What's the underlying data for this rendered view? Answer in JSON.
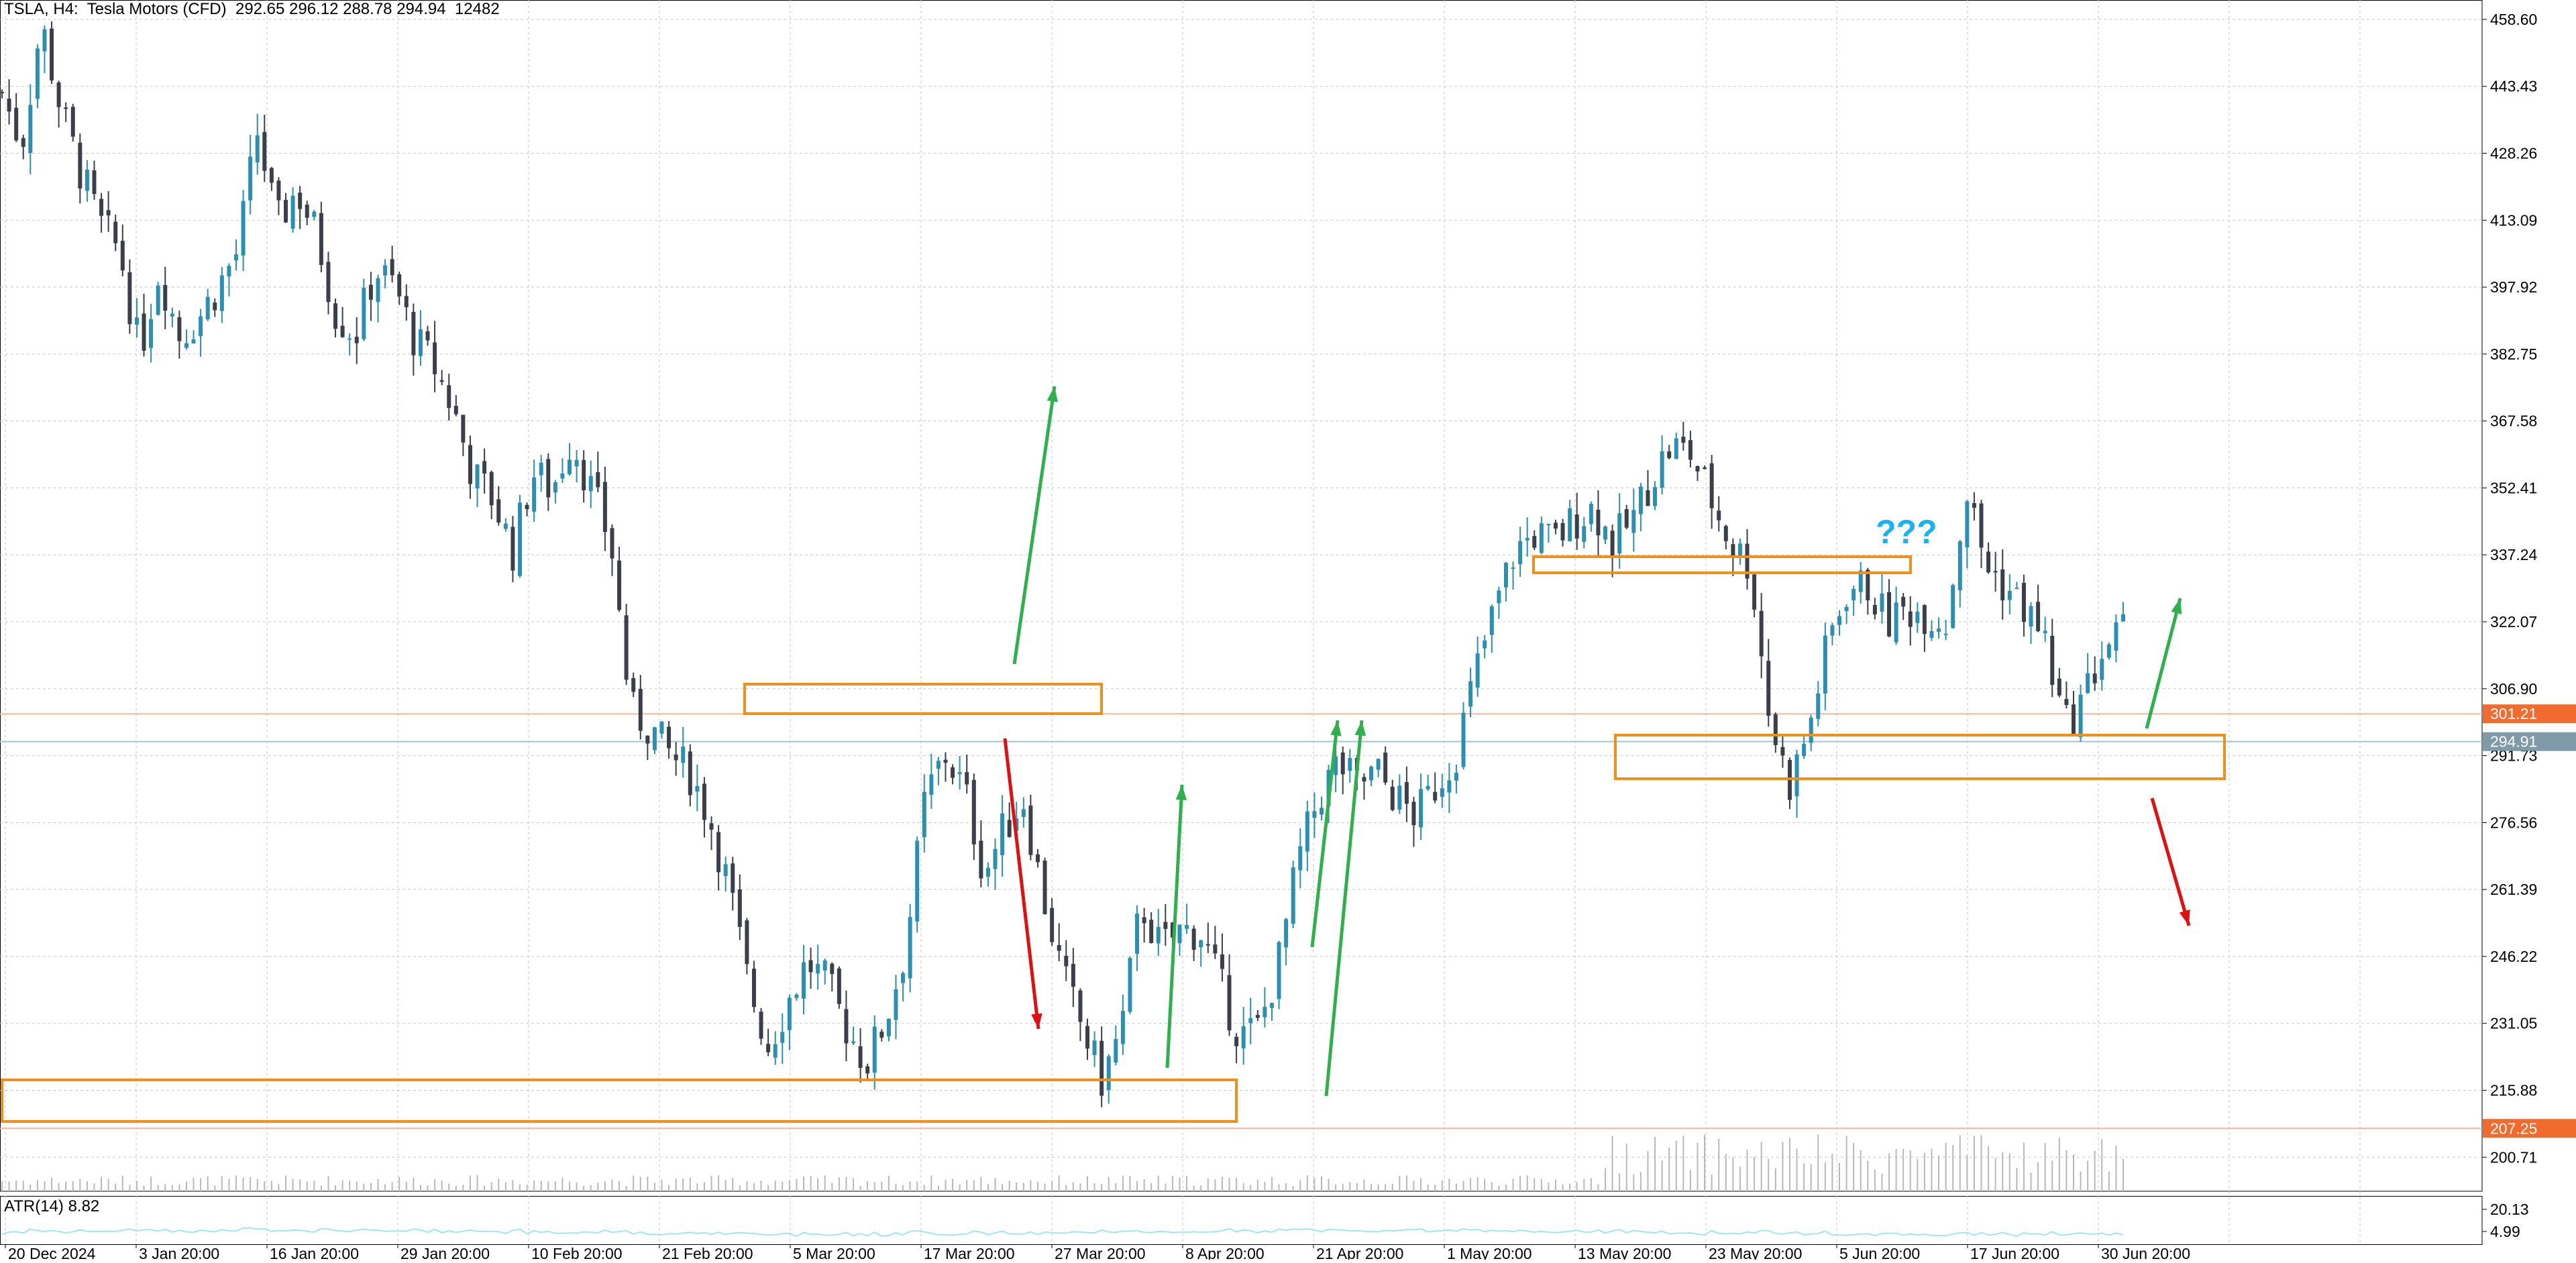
{
  "header": {
    "symbol": "TSLA",
    "timeframe": "H4",
    "instrument": "Tesla Motors (CFD)",
    "ohlc": "292.65 296.12 288.78 294.94",
    "volume": "12482",
    "text": "TSLA, H4:  Tesla Motors (CFD)  292.65 296.12 288.78 294.94  12482"
  },
  "atr_panel": {
    "label": "ATR(14) 8.82"
  },
  "colors": {
    "bull": "#2a8fb0",
    "bear": "#3a3f4a",
    "grid": "#c8c8c8",
    "zone": "#f0901a",
    "arrow_up": "#2eb04a",
    "arrow_down": "#e01010",
    "hline_red": "#f4b7a1",
    "hline_blue": "#9cc7d8",
    "tag_red": "#f26b2e",
    "tag_blue": "#7f9aa8",
    "question": "#19b3f0",
    "volume": "#b8b8b8",
    "atr_line": "#9fe7ee"
  },
  "chart_data": {
    "type": "candlestick",
    "ylim": [
      193,
      463
    ],
    "y_ticks": [
      "458.60",
      "443.43",
      "428.26",
      "413.09",
      "397.92",
      "382.75",
      "367.58",
      "352.41",
      "337.24",
      "322.07",
      "306.90",
      "291.73",
      "276.56",
      "261.39",
      "246.22",
      "231.05",
      "215.88",
      "200.71"
    ],
    "x_labels": [
      "20 Dec 2024",
      "3 Jan 20:00",
      "16 Jan 20:00",
      "29 Jan 20:00",
      "10 Feb 20:00",
      "21 Feb 20:00",
      "5 Mar 20:00",
      "17 Mar 20:00",
      "27 Mar 20:00",
      "8 Apr 20:00",
      "21 Apr 20:00",
      "1 May 20:00",
      "13 May 20:00",
      "23 May 20:00",
      "5 Jun 20:00",
      "17 Jun 20:00",
      "30 Jun 20:00"
    ],
    "price_tags": [
      {
        "value": 301.21,
        "text": "301.21",
        "kind": "red"
      },
      {
        "value": 294.91,
        "text": "294.91",
        "kind": "blue"
      },
      {
        "value": 207.25,
        "text": "207.25",
        "kind": "red"
      }
    ],
    "atr_ticks": [
      "20.13",
      "4.99"
    ],
    "annotation_text": "???",
    "anchors": [
      [
        0,
        442
      ],
      [
        1,
        430
      ],
      [
        2,
        458
      ],
      [
        3,
        438
      ],
      [
        4,
        424
      ],
      [
        5,
        412
      ],
      [
        6,
        406
      ],
      [
        7,
        383
      ],
      [
        8,
        402
      ],
      [
        9,
        387
      ],
      [
        10,
        391
      ],
      [
        11,
        398
      ],
      [
        12,
        406
      ],
      [
        13,
        433
      ],
      [
        14,
        412
      ],
      [
        15,
        420
      ],
      [
        16,
        410
      ],
      [
        17,
        392
      ],
      [
        18,
        387
      ],
      [
        19,
        402
      ],
      [
        20,
        398
      ],
      [
        21,
        386
      ],
      [
        22,
        380
      ],
      [
        23,
        370
      ],
      [
        24,
        355
      ],
      [
        25,
        350
      ],
      [
        26,
        338
      ],
      [
        27,
        356
      ],
      [
        28,
        352
      ],
      [
        29,
        364
      ],
      [
        30,
        352
      ],
      [
        31,
        340
      ],
      [
        32,
        302
      ],
      [
        33,
        298
      ],
      [
        34,
        292
      ],
      [
        35,
        288
      ],
      [
        36,
        278
      ],
      [
        37,
        262
      ],
      [
        38,
        240
      ],
      [
        39,
        226
      ],
      [
        40,
        236
      ],
      [
        41,
        245
      ],
      [
        42,
        240
      ],
      [
        43,
        230
      ],
      [
        44,
        222
      ],
      [
        45,
        232
      ],
      [
        46,
        248
      ],
      [
        47,
        282
      ],
      [
        48,
        292
      ],
      [
        49,
        284
      ],
      [
        50,
        265
      ],
      [
        51,
        275
      ],
      [
        52,
        282
      ],
      [
        53,
        260
      ],
      [
        54,
        242
      ],
      [
        55,
        230
      ],
      [
        56,
        218
      ],
      [
        57,
        230
      ],
      [
        58,
        258
      ],
      [
        59,
        248
      ],
      [
        60,
        252
      ],
      [
        61,
        252
      ],
      [
        62,
        240
      ],
      [
        63,
        228
      ],
      [
        64,
        230
      ],
      [
        65,
        245
      ],
      [
        66,
        268
      ],
      [
        67,
        282
      ],
      [
        68,
        290
      ],
      [
        69,
        285
      ],
      [
        70,
        288
      ],
      [
        71,
        282
      ],
      [
        72,
        278
      ],
      [
        73,
        285
      ],
      [
        74,
        292
      ],
      [
        75,
        310
      ],
      [
        76,
        325
      ],
      [
        77,
        338
      ],
      [
        78,
        342
      ],
      [
        79,
        340
      ],
      [
        80,
        345
      ],
      [
        81,
        348
      ],
      [
        82,
        340
      ],
      [
        83,
        345
      ],
      [
        84,
        355
      ],
      [
        85,
        362
      ],
      [
        86,
        360
      ],
      [
        87,
        350
      ],
      [
        88,
        340
      ],
      [
        89,
        335
      ],
      [
        90,
        300
      ],
      [
        91,
        285
      ],
      [
        92,
        298
      ],
      [
        93,
        318
      ],
      [
        94,
        330
      ],
      [
        95,
        330
      ],
      [
        96,
        322
      ],
      [
        97,
        325
      ],
      [
        98,
        324
      ],
      [
        99,
        322
      ],
      [
        100,
        352
      ],
      [
        101,
        335
      ],
      [
        102,
        330
      ],
      [
        103,
        325
      ],
      [
        104,
        318
      ],
      [
        105,
        298
      ],
      [
        106,
        305
      ],
      [
        107,
        316
      ],
      [
        108,
        320
      ]
    ],
    "candle_count": 300
  }
}
